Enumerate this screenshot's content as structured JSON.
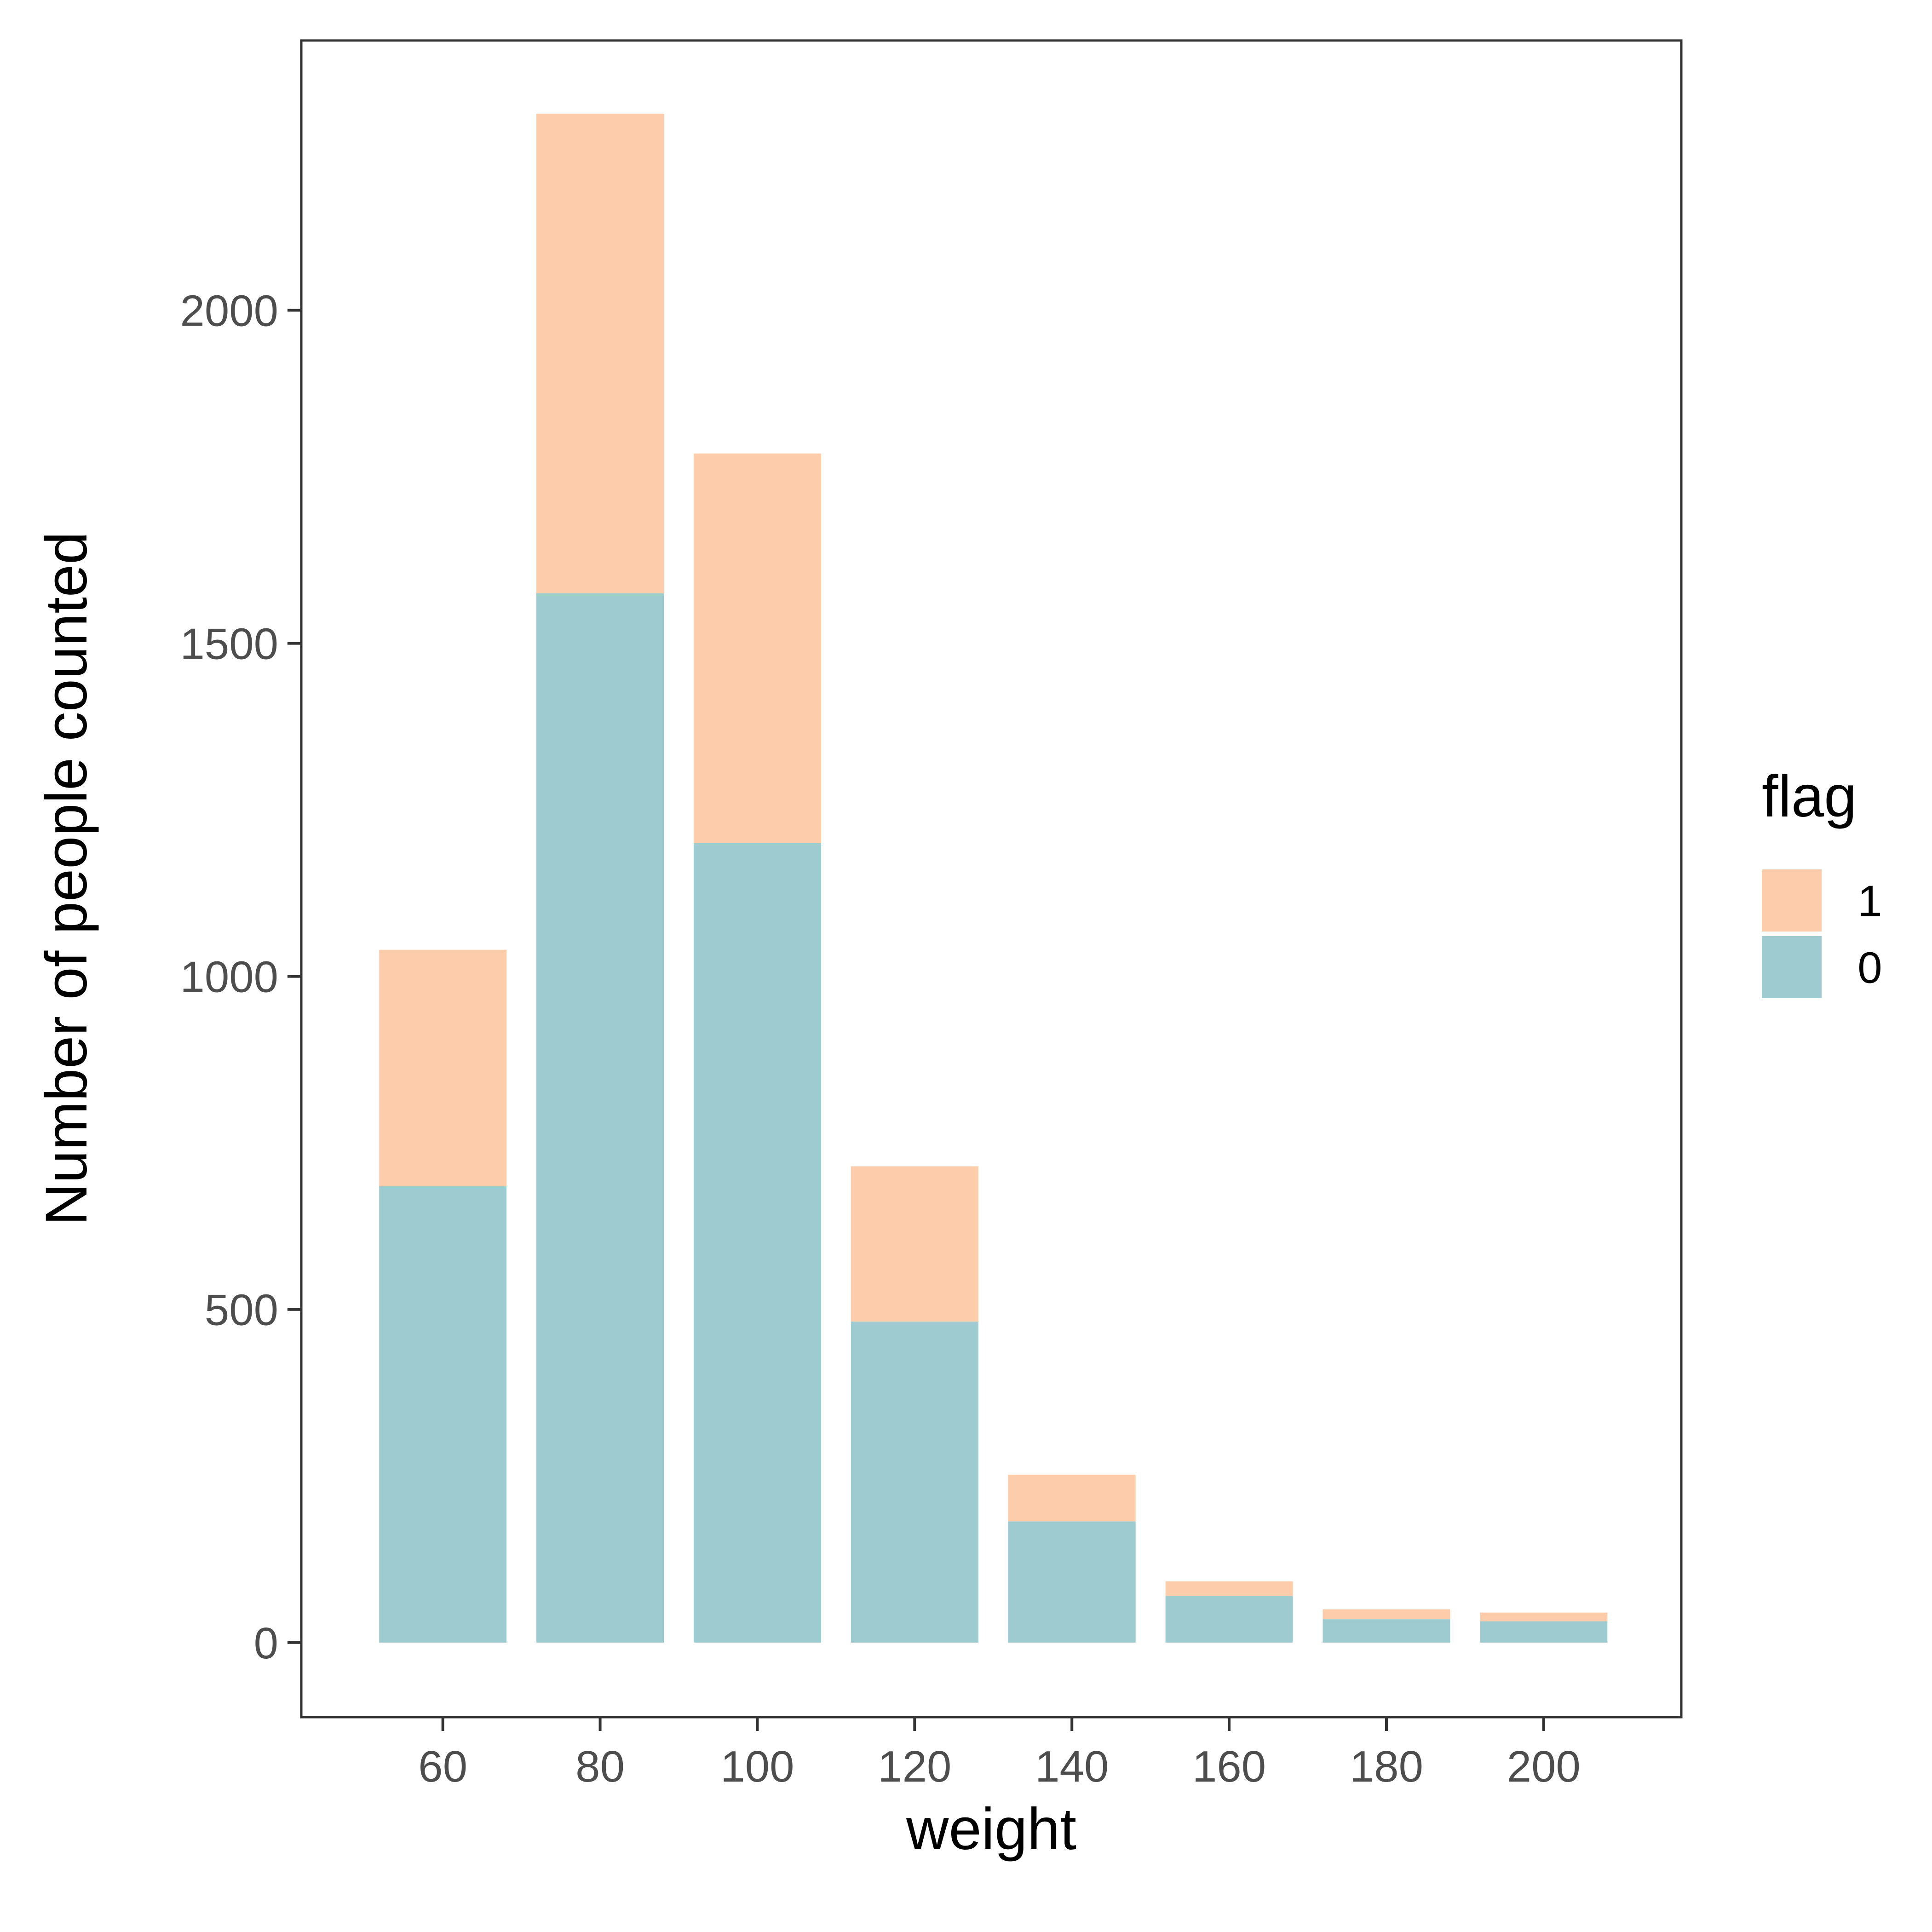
{
  "chart_data": {
    "type": "bar",
    "stacked": true,
    "xlabel": "weight",
    "ylabel": "Number of people counted",
    "x": [
      60,
      80,
      100,
      120,
      140,
      160,
      180,
      200
    ],
    "x_ticks": [
      "60",
      "80",
      "100",
      "120",
      "140",
      "160",
      "180",
      "200"
    ],
    "y_ticks": [
      "0",
      "500",
      "1000",
      "1500",
      "2000"
    ],
    "y_tick_values": [
      0,
      500,
      1000,
      1500,
      2000
    ],
    "xlim": [
      42,
      217.5
    ],
    "ylim": [
      -112,
      2405
    ],
    "bin_width": 18,
    "series": [
      {
        "name": "0",
        "color": "#9ecbcf",
        "values": [
          685,
          1575,
          1200,
          482,
          182,
          70,
          35,
          32
        ]
      },
      {
        "name": "1",
        "color": "#fdccaa",
        "values": [
          355,
          720,
          585,
          233,
          70,
          22,
          15,
          13
        ]
      }
    ],
    "legend": {
      "title": "flag",
      "position": "right",
      "entries": [
        {
          "label": "1",
          "color": "#fdccaa"
        },
        {
          "label": "0",
          "color": "#9ecbcf"
        }
      ]
    },
    "grid": false,
    "colors": {
      "panel_border": "#333333",
      "tick_text": "#4d4d4d",
      "title_text": "#000000"
    }
  }
}
